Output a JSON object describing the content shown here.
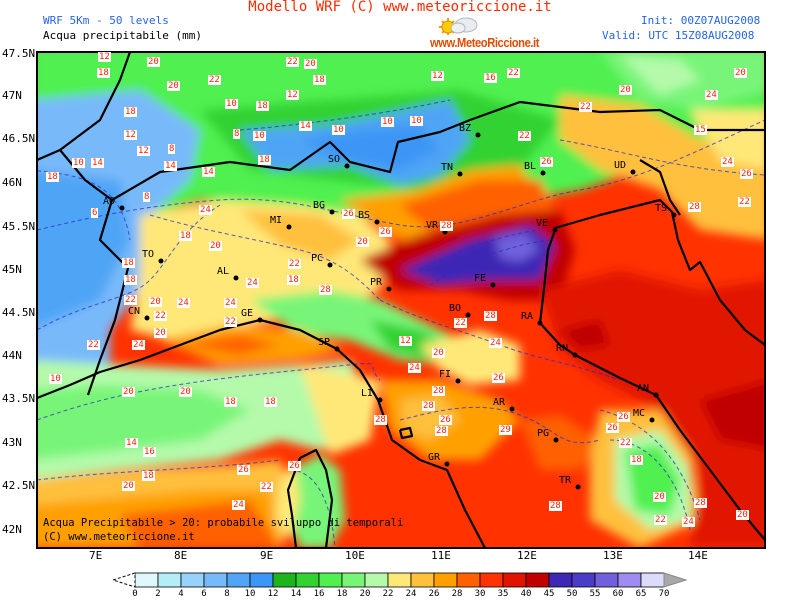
{
  "header": {
    "title": "Modello WRF (C) www.meteoriccione.it",
    "model": "WRF 5Km - 50 levels",
    "variable": "Acqua precipitabile (mm)",
    "init": "Init: 00Z07AUG2008",
    "valid": "Valid: UTC 15Z08AUG2008",
    "logo_text": "www.MeteoRiccione.it"
  },
  "map": {
    "lat_labels": [
      "47.5N",
      "47N",
      "46.5N",
      "46N",
      "45.5N",
      "45N",
      "44.5N",
      "44N",
      "43.5N",
      "43N",
      "42.5N",
      "42N"
    ],
    "lon_labels": [
      "7E",
      "8E",
      "9E",
      "10E",
      "11E",
      "12E",
      "13E",
      "14E"
    ],
    "cities": [
      "AO",
      "TO",
      "AL",
      "CN",
      "MI",
      "BG",
      "BS",
      "SO",
      "BZ",
      "TN",
      "BL",
      "UD",
      "VR",
      "VE",
      "TS",
      "PC",
      "PR",
      "FE",
      "BO",
      "RA",
      "GE",
      "SP",
      "FI",
      "LI",
      "AR",
      "PG",
      "GR",
      "TR",
      "RN",
      "AN",
      "MC"
    ],
    "contour_labels": [
      "12",
      "20",
      "18",
      "20",
      "22",
      "18",
      "12",
      "12",
      "8",
      "10",
      "14",
      "18",
      "14",
      "14",
      "8",
      "10",
      "18",
      "10",
      "18",
      "12",
      "14",
      "10",
      "22",
      "20",
      "18",
      "10",
      "10",
      "12",
      "16",
      "22",
      "22",
      "22",
      "20",
      "24",
      "20",
      "6",
      "8",
      "24",
      "18",
      "20",
      "24",
      "22",
      "18",
      "28",
      "18",
      "18",
      "20",
      "22",
      "22",
      "24",
      "24",
      "22",
      "20",
      "24",
      "22",
      "10",
      "20",
      "20",
      "18",
      "18",
      "14",
      "16",
      "20",
      "18",
      "26",
      "22",
      "26",
      "24",
      "12",
      "24",
      "20",
      "24",
      "26",
      "28",
      "28",
      "28",
      "26",
      "28",
      "29",
      "28",
      "18",
      "26",
      "26",
      "22",
      "28",
      "22",
      "26",
      "20",
      "26",
      "28",
      "26",
      "28",
      "22",
      "24",
      "26",
      "15",
      "22",
      "28",
      "20",
      "24",
      "20"
    ],
    "annotation_line1": "Acqua Precipitabile > 20: probabile sviluppo di temporali",
    "annotation_line2": "(C) www.meteoriccione.it"
  },
  "legend": {
    "ticks": [
      "0",
      "2",
      "4",
      "6",
      "8",
      "10",
      "12",
      "14",
      "16",
      "18",
      "20",
      "22",
      "24",
      "26",
      "28",
      "30",
      "35",
      "40",
      "45",
      "50",
      "55",
      "60",
      "65",
      "70"
    ],
    "colors": [
      "#e0f8fc",
      "#b4ecf8",
      "#96d2fa",
      "#78b9fa",
      "#50a5f5",
      "#3c96f5",
      "#1eb41e",
      "#32d232",
      "#50f050",
      "#78f578",
      "#b4faaa",
      "#ffe878",
      "#ffc03c",
      "#ffa000",
      "#ff6000",
      "#ff3200",
      "#e11400",
      "#c00000",
      "#3c28b4",
      "#4b3cc8",
      "#7060dc",
      "#a08cf0",
      "#dcdcfa"
    ],
    "under_color": "#ffffff",
    "over_color": "#a8a8a8"
  }
}
